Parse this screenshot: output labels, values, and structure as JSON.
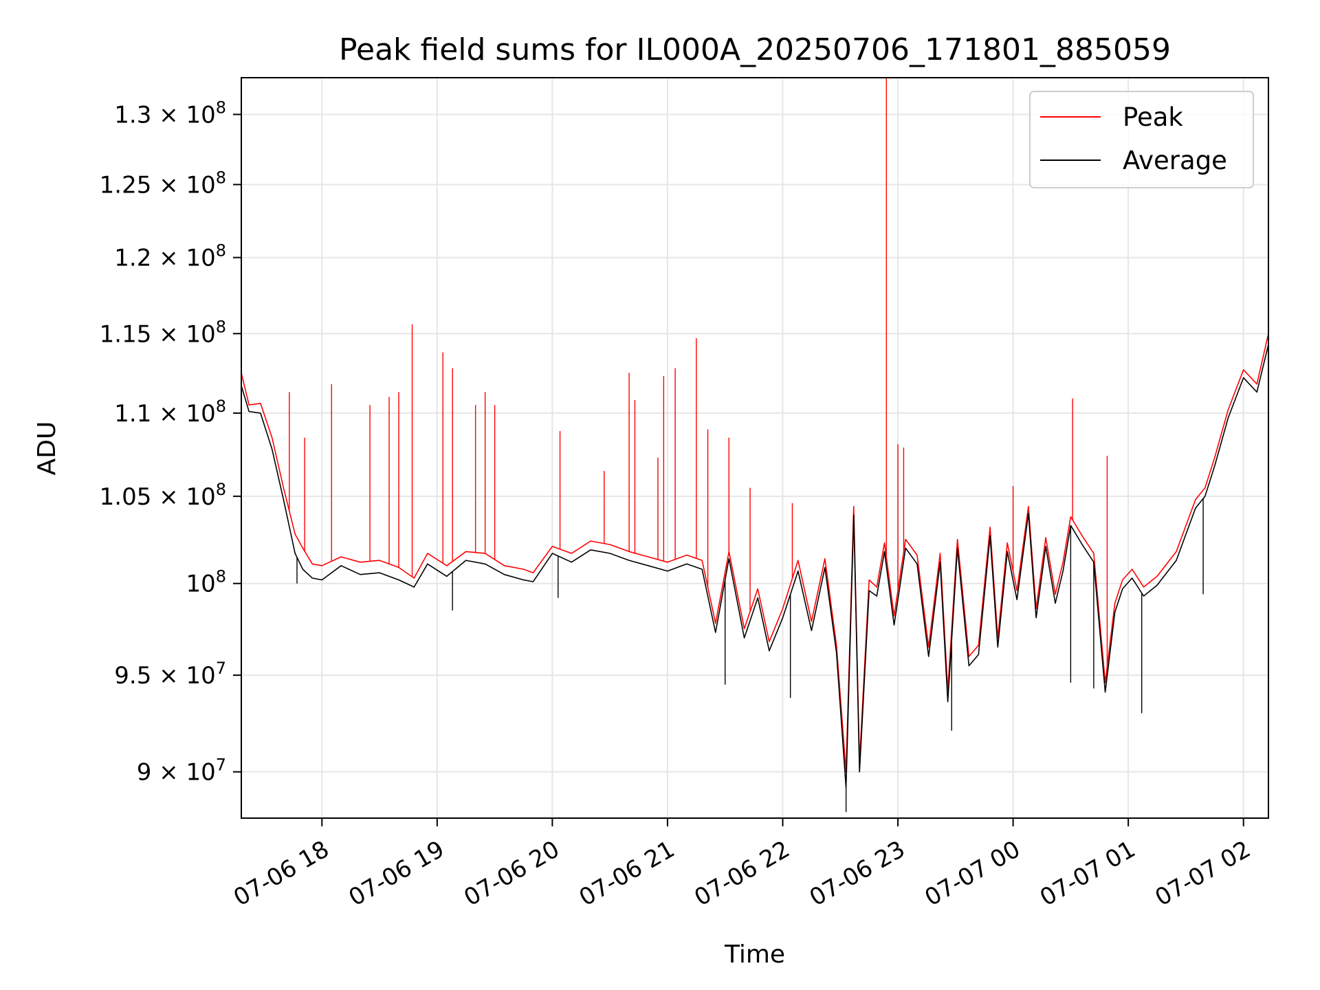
{
  "chart_data": {
    "type": "line",
    "title": "Peak field sums for IL000A_20250706_171801_885059",
    "xlabel": "Time",
    "ylabel": "ADU",
    "yscale": "log",
    "xlim": [
      "2025-07-06T17:18",
      "2025-07-07T02:13"
    ],
    "ylim": [
      87700000,
      132700000
    ],
    "grid": true,
    "legend_position": "top-right",
    "x_ticks": [
      {
        "value": "2025-07-06T18:00",
        "label": "07-06 18"
      },
      {
        "value": "2025-07-06T19:00",
        "label": "07-06 19"
      },
      {
        "value": "2025-07-06T20:00",
        "label": "07-06 20"
      },
      {
        "value": "2025-07-06T21:00",
        "label": "07-06 21"
      },
      {
        "value": "2025-07-06T22:00",
        "label": "07-06 22"
      },
      {
        "value": "2025-07-06T23:00",
        "label": "07-06 23"
      },
      {
        "value": "2025-07-07T00:00",
        "label": "07-07 00"
      },
      {
        "value": "2025-07-07T01:00",
        "label": "07-07 01"
      },
      {
        "value": "2025-07-07T02:00",
        "label": "07-07 02"
      }
    ],
    "y_ticks": [
      {
        "value": 90000000,
        "mantissa": "9 × 10",
        "exp": "7"
      },
      {
        "value": 95000000,
        "mantissa": "9.5 × 10",
        "exp": "7"
      },
      {
        "value": 100000000,
        "mantissa": "10",
        "exp": "8"
      },
      {
        "value": 105000000,
        "mantissa": "1.05 × 10",
        "exp": "8"
      },
      {
        "value": 110000000,
        "mantissa": "1.1 × 10",
        "exp": "8"
      },
      {
        "value": 115000000,
        "mantissa": "1.15 × 10",
        "exp": "8"
      },
      {
        "value": 120000000,
        "mantissa": "1.2 × 10",
        "exp": "8"
      },
      {
        "value": 125000000,
        "mantissa": "1.25 × 10",
        "exp": "8"
      },
      {
        "value": 130000000,
        "mantissa": "1.3 × 10",
        "exp": "8"
      }
    ],
    "series": [
      {
        "name": "Peak",
        "color": "#ff0000",
        "x": [
          "2025-07-06T17:18",
          "2025-07-06T17:22",
          "2025-07-06T17:28",
          "2025-07-06T17:34",
          "2025-07-06T17:40",
          "2025-07-06T17:46",
          "2025-07-06T17:50",
          "2025-07-06T17:55",
          "2025-07-06T18:00",
          "2025-07-06T18:10",
          "2025-07-06T18:20",
          "2025-07-06T18:30",
          "2025-07-06T18:40",
          "2025-07-06T18:48",
          "2025-07-06T18:55",
          "2025-07-06T19:05",
          "2025-07-06T19:15",
          "2025-07-06T19:25",
          "2025-07-06T19:35",
          "2025-07-06T19:45",
          "2025-07-06T19:50",
          "2025-07-06T20:00",
          "2025-07-06T20:10",
          "2025-07-06T20:20",
          "2025-07-06T20:30",
          "2025-07-06T20:40",
          "2025-07-06T20:50",
          "2025-07-06T21:00",
          "2025-07-06T21:10",
          "2025-07-06T21:18",
          "2025-07-06T21:25",
          "2025-07-06T21:32",
          "2025-07-06T21:40",
          "2025-07-06T21:47",
          "2025-07-06T21:53",
          "2025-07-06T22:00",
          "2025-07-06T22:08",
          "2025-07-06T22:15",
          "2025-07-06T22:22",
          "2025-07-06T22:28",
          "2025-07-06T22:33",
          "2025-07-06T22:37",
          "2025-07-06T22:40",
          "2025-07-06T22:45",
          "2025-07-06T22:49",
          "2025-07-06T22:53",
          "2025-07-06T22:58",
          "2025-07-06T23:04",
          "2025-07-06T23:10",
          "2025-07-06T23:16",
          "2025-07-06T23:22",
          "2025-07-06T23:26",
          "2025-07-06T23:31",
          "2025-07-06T23:37",
          "2025-07-06T23:42",
          "2025-07-06T23:48",
          "2025-07-06T23:52",
          "2025-07-06T23:57",
          "2025-07-07T00:02",
          "2025-07-07T00:08",
          "2025-07-07T00:12",
          "2025-07-07T00:17",
          "2025-07-07T00:22",
          "2025-07-07T00:26",
          "2025-07-07T00:30",
          "2025-07-07T00:36",
          "2025-07-07T00:42",
          "2025-07-07T00:48",
          "2025-07-07T00:53",
          "2025-07-07T00:57",
          "2025-07-07T01:02",
          "2025-07-07T01:08",
          "2025-07-07T01:15",
          "2025-07-07T01:25",
          "2025-07-07T01:35",
          "2025-07-07T01:40",
          "2025-07-07T01:45",
          "2025-07-07T01:52",
          "2025-07-07T02:00",
          "2025-07-07T02:07",
          "2025-07-07T02:13"
        ],
        "y": [
          112500000,
          110500000,
          110600000,
          108500000,
          105500000,
          102800000,
          102000000,
          101100000,
          101000000,
          101500000,
          101200000,
          101300000,
          100900000,
          100300000,
          101700000,
          101000000,
          101800000,
          101700000,
          101000000,
          100800000,
          100600000,
          102100000,
          101700000,
          102400000,
          102200000,
          101800000,
          101500000,
          101200000,
          101600000,
          101300000,
          97800000,
          101800000,
          97500000,
          99700000,
          96800000,
          98600000,
          101300000,
          97900000,
          101400000,
          96600000,
          90000000,
          104400000,
          90500000,
          100200000,
          99800000,
          102300000,
          98200000,
          102500000,
          101600000,
          96500000,
          101700000,
          94200000,
          102500000,
          96000000,
          96600000,
          103200000,
          97000000,
          102300000,
          99600000,
          104400000,
          98600000,
          102600000,
          99400000,
          101200000,
          103800000,
          102700000,
          101700000,
          94600000,
          98900000,
          100200000,
          100800000,
          99800000,
          100400000,
          101800000,
          104800000,
          105500000,
          107300000,
          110200000,
          112700000,
          111800000,
          115000000
        ]
      },
      {
        "name": "Average",
        "color": "#000000",
        "x": [
          "2025-07-06T17:18",
          "2025-07-06T17:22",
          "2025-07-06T17:28",
          "2025-07-06T17:34",
          "2025-07-06T17:40",
          "2025-07-06T17:46",
          "2025-07-06T17:50",
          "2025-07-06T17:55",
          "2025-07-06T18:00",
          "2025-07-06T18:10",
          "2025-07-06T18:20",
          "2025-07-06T18:30",
          "2025-07-06T18:40",
          "2025-07-06T18:48",
          "2025-07-06T18:55",
          "2025-07-06T19:05",
          "2025-07-06T19:15",
          "2025-07-06T19:25",
          "2025-07-06T19:35",
          "2025-07-06T19:45",
          "2025-07-06T19:50",
          "2025-07-06T20:00",
          "2025-07-06T20:10",
          "2025-07-06T20:20",
          "2025-07-06T20:30",
          "2025-07-06T20:40",
          "2025-07-06T20:50",
          "2025-07-06T21:00",
          "2025-07-06T21:10",
          "2025-07-06T21:18",
          "2025-07-06T21:25",
          "2025-07-06T21:32",
          "2025-07-06T21:40",
          "2025-07-06T21:47",
          "2025-07-06T21:53",
          "2025-07-06T22:00",
          "2025-07-06T22:08",
          "2025-07-06T22:15",
          "2025-07-06T22:22",
          "2025-07-06T22:28",
          "2025-07-06T22:33",
          "2025-07-06T22:37",
          "2025-07-06T22:40",
          "2025-07-06T22:45",
          "2025-07-06T22:49",
          "2025-07-06T22:53",
          "2025-07-06T22:58",
          "2025-07-06T23:04",
          "2025-07-06T23:10",
          "2025-07-06T23:16",
          "2025-07-06T23:22",
          "2025-07-06T23:26",
          "2025-07-06T23:31",
          "2025-07-06T23:37",
          "2025-07-06T23:42",
          "2025-07-06T23:48",
          "2025-07-06T23:52",
          "2025-07-06T23:57",
          "2025-07-07T00:02",
          "2025-07-07T00:08",
          "2025-07-07T00:12",
          "2025-07-07T00:17",
          "2025-07-07T00:22",
          "2025-07-07T00:26",
          "2025-07-07T00:30",
          "2025-07-07T00:36",
          "2025-07-07T00:42",
          "2025-07-07T00:48",
          "2025-07-07T00:53",
          "2025-07-07T00:57",
          "2025-07-07T01:02",
          "2025-07-07T01:08",
          "2025-07-07T01:15",
          "2025-07-07T01:25",
          "2025-07-07T01:35",
          "2025-07-07T01:40",
          "2025-07-07T01:45",
          "2025-07-07T01:52",
          "2025-07-07T02:00",
          "2025-07-07T02:07",
          "2025-07-07T02:13"
        ],
        "y": [
          111700000,
          110100000,
          110000000,
          107800000,
          104800000,
          101700000,
          100800000,
          100300000,
          100200000,
          101000000,
          100500000,
          100600000,
          100200000,
          99800000,
          101100000,
          100400000,
          101300000,
          101100000,
          100500000,
          100200000,
          100100000,
          101700000,
          101200000,
          101900000,
          101700000,
          101300000,
          101000000,
          100700000,
          101100000,
          100800000,
          97300000,
          101400000,
          97000000,
          99200000,
          96300000,
          98100000,
          100700000,
          97400000,
          100900000,
          96200000,
          89200000,
          103900000,
          90000000,
          99600000,
          99300000,
          101800000,
          97700000,
          102000000,
          101100000,
          96000000,
          101200000,
          93600000,
          102000000,
          95500000,
          96100000,
          102700000,
          96500000,
          101800000,
          99100000,
          104000000,
          98100000,
          102100000,
          98900000,
          100700000,
          103300000,
          102200000,
          101200000,
          94100000,
          98400000,
          99700000,
          100300000,
          99300000,
          99900000,
          101300000,
          104300000,
          105000000,
          106800000,
          109700000,
          112200000,
          111300000,
          114300000
        ]
      }
    ],
    "spikes": {
      "series": "Peak",
      "color": "#ff0000",
      "points": [
        {
          "x": "2025-07-06T17:43",
          "y": 111300000
        },
        {
          "x": "2025-07-06T17:51",
          "y": 108500000
        },
        {
          "x": "2025-07-06T18:05",
          "y": 111800000
        },
        {
          "x": "2025-07-06T18:25",
          "y": 110500000
        },
        {
          "x": "2025-07-06T18:35",
          "y": 111000000
        },
        {
          "x": "2025-07-06T18:40",
          "y": 111300000
        },
        {
          "x": "2025-07-06T18:47",
          "y": 115600000
        },
        {
          "x": "2025-07-06T19:03",
          "y": 113800000
        },
        {
          "x": "2025-07-06T19:08",
          "y": 112800000
        },
        {
          "x": "2025-07-06T19:20",
          "y": 110500000
        },
        {
          "x": "2025-07-06T19:25",
          "y": 111300000
        },
        {
          "x": "2025-07-06T19:30",
          "y": 110500000
        },
        {
          "x": "2025-07-06T20:04",
          "y": 108900000
        },
        {
          "x": "2025-07-06T20:27",
          "y": 106500000
        },
        {
          "x": "2025-07-06T20:40",
          "y": 112500000
        },
        {
          "x": "2025-07-06T20:43",
          "y": 110800000
        },
        {
          "x": "2025-07-06T20:55",
          "y": 107300000
        },
        {
          "x": "2025-07-06T20:58",
          "y": 112300000
        },
        {
          "x": "2025-07-06T21:04",
          "y": 112800000
        },
        {
          "x": "2025-07-06T21:15",
          "y": 114700000
        },
        {
          "x": "2025-07-06T21:21",
          "y": 109000000
        },
        {
          "x": "2025-07-06T21:32",
          "y": 108500000
        },
        {
          "x": "2025-07-06T21:43",
          "y": 105500000
        },
        {
          "x": "2025-07-06T22:05",
          "y": 104600000
        },
        {
          "x": "2025-07-06T22:54",
          "y": 132700000
        },
        {
          "x": "2025-07-06T23:00",
          "y": 108100000
        },
        {
          "x": "2025-07-06T23:03",
          "y": 107900000
        },
        {
          "x": "2025-07-07T00:00",
          "y": 105600000
        },
        {
          "x": "2025-07-07T00:31",
          "y": 110900000
        },
        {
          "x": "2025-07-07T00:49",
          "y": 107400000
        }
      ]
    },
    "dips": {
      "series": "Average",
      "color": "#000000",
      "points": [
        {
          "x": "2025-07-06T17:47",
          "y": 100000000
        },
        {
          "x": "2025-07-06T19:08",
          "y": 98500000
        },
        {
          "x": "2025-07-06T20:03",
          "y": 99200000
        },
        {
          "x": "2025-07-06T21:30",
          "y": 94500000
        },
        {
          "x": "2025-07-06T22:04",
          "y": 93800000
        },
        {
          "x": "2025-07-06T22:33",
          "y": 88000000
        },
        {
          "x": "2025-07-06T23:28",
          "y": 92100000
        },
        {
          "x": "2025-07-07T00:30",
          "y": 94600000
        },
        {
          "x": "2025-07-07T00:42",
          "y": 94300000
        },
        {
          "x": "2025-07-07T01:07",
          "y": 93000000
        },
        {
          "x": "2025-07-07T01:39",
          "y": 99400000
        }
      ]
    }
  }
}
